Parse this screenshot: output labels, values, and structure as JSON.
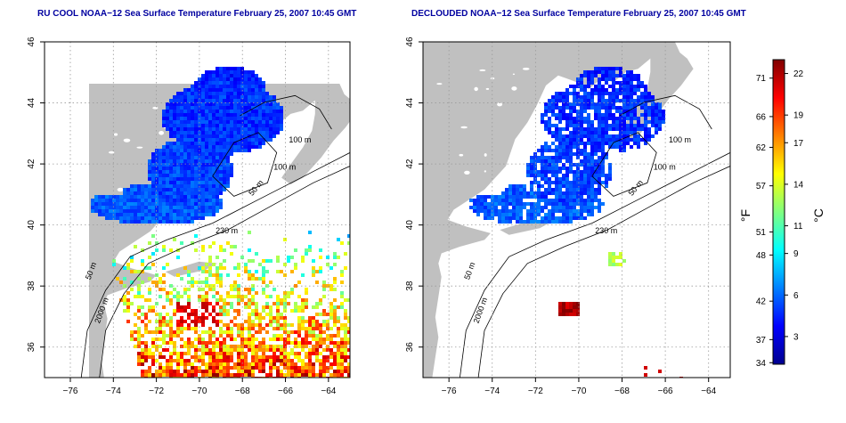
{
  "panels": [
    {
      "title": "RU COOL NOAA−12 Sea Surface Temperature February 25, 2007 10:45 GMT",
      "kind": "cloudy"
    },
    {
      "title": "DECLOUDED NOAA−12 Sea Surface Temperature February 25, 2007 10:45 GMT",
      "kind": "declouded"
    }
  ],
  "axes": {
    "x_ticks": [
      "−76",
      "−74",
      "−72",
      "−70",
      "−68",
      "−66",
      "−64"
    ],
    "y_ticks": [
      "36",
      "38",
      "40",
      "42",
      "44",
      "46"
    ],
    "x_range": [
      -77.2,
      -63
    ],
    "y_range": [
      35,
      46
    ]
  },
  "isobath_labels": [
    "100 m",
    "100 m",
    "50 m",
    "230 m",
    "50 m",
    "2000 m"
  ],
  "colorbar": {
    "fahrenheit_unit": "°F",
    "celsius_unit": "°C",
    "fahrenheit_ticks": [
      "71",
      "66",
      "62",
      "57",
      "51",
      "48",
      "42",
      "37",
      "34"
    ],
    "celsius_ticks": [
      "22",
      "19",
      "17",
      "14",
      "11",
      "9",
      "6",
      "3"
    ],
    "range_celsius": [
      1,
      23
    ],
    "colors": [
      "#00008f",
      "#0000ff",
      "#0080ff",
      "#00ffff",
      "#80ff80",
      "#ffff00",
      "#ff8000",
      "#ff0000",
      "#800000"
    ]
  },
  "colors": {
    "land": "#c0c0c0",
    "water": "#ffffff",
    "contour": "#000000",
    "grid": "#9a9a9a",
    "title": "#0000a0"
  }
}
